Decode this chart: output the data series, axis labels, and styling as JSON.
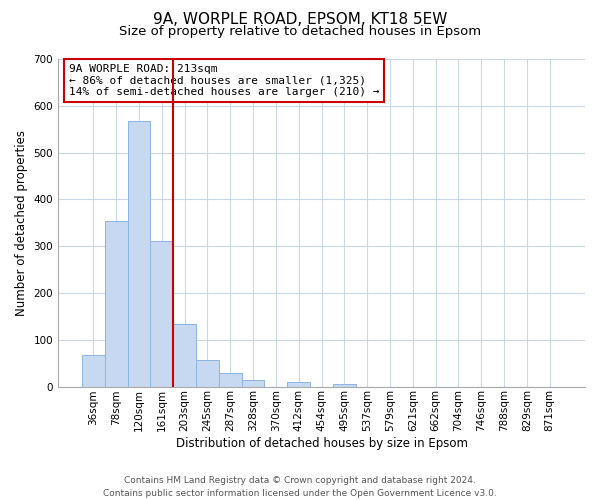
{
  "title": "9A, WORPLE ROAD, EPSOM, KT18 5EW",
  "subtitle": "Size of property relative to detached houses in Epsom",
  "xlabel": "Distribution of detached houses by size in Epsom",
  "ylabel": "Number of detached properties",
  "bin_labels": [
    "36sqm",
    "78sqm",
    "120sqm",
    "161sqm",
    "203sqm",
    "245sqm",
    "287sqm",
    "328sqm",
    "370sqm",
    "412sqm",
    "454sqm",
    "495sqm",
    "537sqm",
    "579sqm",
    "621sqm",
    "662sqm",
    "704sqm",
    "746sqm",
    "788sqm",
    "829sqm",
    "871sqm"
  ],
  "bar_values": [
    68,
    354,
    567,
    312,
    133,
    57,
    28,
    14,
    0,
    10,
    0,
    5,
    0,
    0,
    0,
    0,
    0,
    0,
    0,
    0,
    0
  ],
  "bar_color": "#c6d9f0",
  "bar_edge_color": "#8db4e2",
  "vline_color": "#cc0000",
  "annotation_text": "9A WORPLE ROAD: 213sqm\n← 86% of detached houses are smaller (1,325)\n14% of semi-detached houses are larger (210) →",
  "annotation_box_color": "white",
  "annotation_box_edge_color": "#cc0000",
  "ylim": [
    0,
    700
  ],
  "yticks": [
    0,
    100,
    200,
    300,
    400,
    500,
    600,
    700
  ],
  "footer_line1": "Contains HM Land Registry data © Crown copyright and database right 2024.",
  "footer_line2": "Contains public sector information licensed under the Open Government Licence v3.0.",
  "bg_color": "#ffffff",
  "grid_color": "#c8d8e8",
  "title_fontsize": 11,
  "subtitle_fontsize": 9.5,
  "label_fontsize": 8.5,
  "tick_fontsize": 7.5,
  "annotation_fontsize": 8,
  "footer_fontsize": 6.5
}
